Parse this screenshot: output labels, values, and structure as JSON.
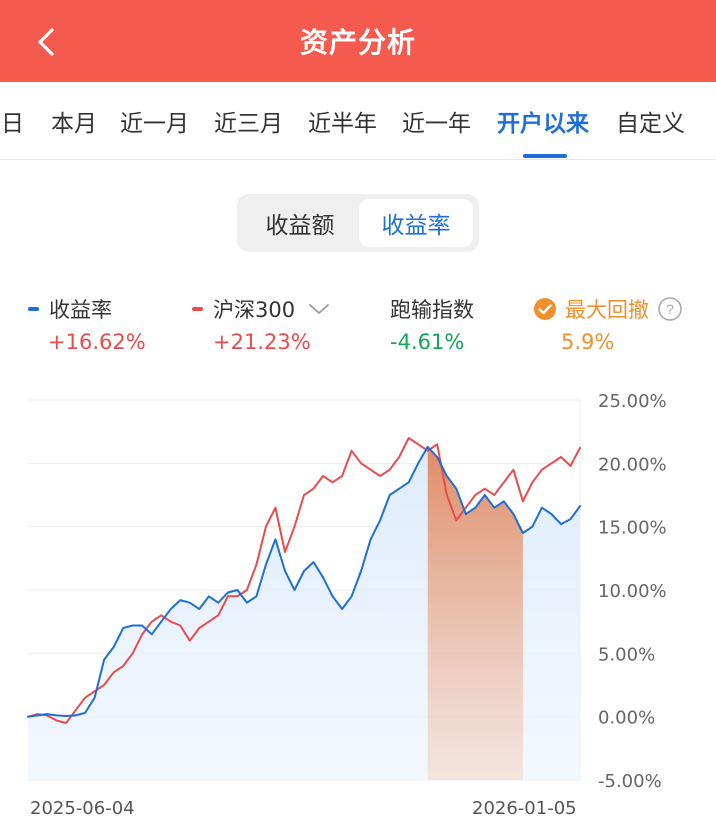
{
  "header": {
    "title": "资产分析"
  },
  "tabs": [
    {
      "label": "今日",
      "active": false
    },
    {
      "label": "本月",
      "active": false
    },
    {
      "label": "近一月",
      "active": false
    },
    {
      "label": "近三月",
      "active": false
    },
    {
      "label": "近半年",
      "active": false
    },
    {
      "label": "近一年",
      "active": false
    },
    {
      "label": "开户以来",
      "active": true
    },
    {
      "label": "自定义",
      "active": false
    }
  ],
  "segment": {
    "option1": "收益额",
    "option2": "收益率",
    "active": "收益率"
  },
  "legend": {
    "return": {
      "label": "收益率",
      "value": "+16.62%"
    },
    "benchmark": {
      "label": "沪深300",
      "value": "+21.23%"
    },
    "excess": {
      "label": "跑输指数",
      "value": "-4.61%"
    },
    "drawdown": {
      "label": "最大回撤",
      "value": "5.9%"
    }
  },
  "colors": {
    "header": "#f55a4e",
    "accent_blue": "#1f6fd8",
    "red": "#e84c4c",
    "green": "#13a55a",
    "orange": "#f0902c"
  },
  "icons": {
    "back": "chevron-left-icon",
    "dropdown": "chevron-down-icon",
    "check": "check-circle-icon",
    "help": "question-circle-icon"
  },
  "chart_data": {
    "type": "line",
    "ylim": [
      -5,
      25
    ],
    "y_ticks": [
      "25.00%",
      "20.00%",
      "15.00%",
      "10.00%",
      "5.00%",
      "0.00%",
      "-5.00%"
    ],
    "x_start_label": "2025-06-04",
    "x_end_label": "2026-01-05",
    "grid": true,
    "series": [
      {
        "name": "收益率",
        "color": "#1f6fd8",
        "values": [
          0,
          0.1,
          0.2,
          0.1,
          0.05,
          0.1,
          0.3,
          1.5,
          4.5,
          5.5,
          7,
          7.2,
          7.2,
          6.5,
          7.5,
          8.5,
          9.2,
          9,
          8.5,
          9.5,
          9,
          9.8,
          10,
          9,
          9.5,
          12,
          14,
          11.5,
          10,
          11.5,
          12.2,
          11,
          9.5,
          8.5,
          9.5,
          11.5,
          14,
          15.5,
          17.5,
          18,
          18.5,
          20,
          21.3,
          20.5,
          19,
          18,
          16,
          16.5,
          17.5,
          16.5,
          17,
          16,
          14.5,
          15,
          16.5,
          16,
          15.2,
          15.6,
          16.62
        ]
      },
      {
        "name": "沪深300",
        "color": "#e84c4c",
        "values": [
          0,
          0.2,
          0.1,
          -0.3,
          -0.5,
          0.5,
          1.5,
          2,
          2.5,
          3.5,
          4,
          5,
          6.5,
          7.5,
          8,
          7.5,
          7.2,
          6,
          7,
          7.5,
          8,
          9.5,
          9.5,
          10,
          12,
          15,
          16.5,
          13,
          15,
          17.5,
          18,
          19,
          18.5,
          19,
          21,
          20,
          19.5,
          19,
          19.5,
          20.5,
          22,
          21.5,
          21,
          21.5,
          17.5,
          15.5,
          16.5,
          17.5,
          18,
          17.5,
          18.5,
          19.5,
          17,
          18.5,
          19.5,
          20,
          20.5,
          19.8,
          21.23
        ]
      }
    ],
    "max_drawdown": {
      "value": "5.9%",
      "start_index": 42,
      "end_index": 52
    }
  }
}
